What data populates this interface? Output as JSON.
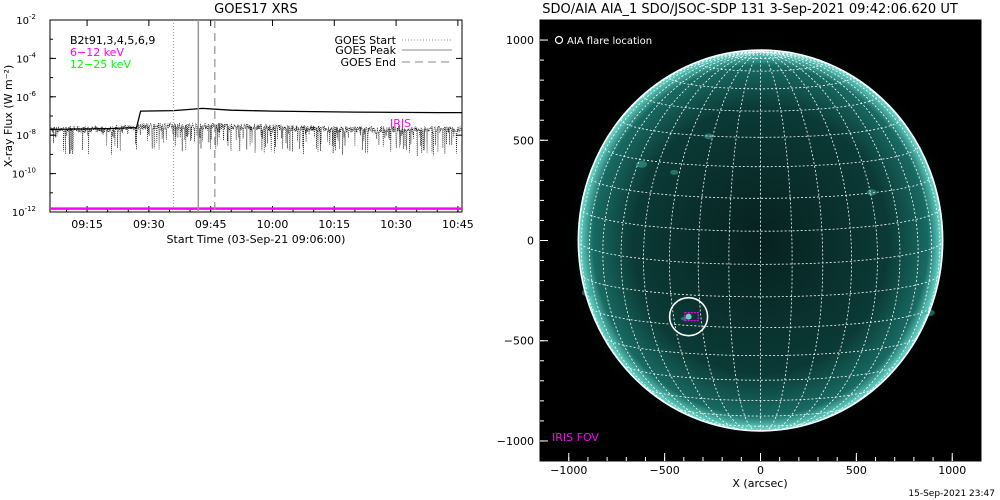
{
  "stamp": "15-Sep-2021 23:47",
  "chart_data": [
    {
      "type": "line",
      "title": "GOES17 XRS",
      "xlabel": "Start Time (03-Sep-21 09:06:00)",
      "ylabel": "X-ray Flux (W m⁻²)",
      "y_scale": "log",
      "ylim": [
        1e-12,
        0.01
      ],
      "xlim": [
        "09:06",
        "10:46"
      ],
      "x_ticks": [
        "09:15",
        "09:30",
        "09:45",
        "10:00",
        "10:15",
        "10:30",
        "10:45"
      ],
      "y_ticks": [
        "10",
        "10",
        "10",
        "10",
        "10",
        "10"
      ],
      "y_tick_exps": [
        "-12",
        "-10",
        "-8",
        "-6",
        "-4",
        "-2"
      ],
      "y_tick_values": [
        1e-12,
        1e-10,
        1e-08,
        1e-06,
        0.0001,
        0.01
      ],
      "channels_label": "B2t91,3,4,5,6,9",
      "band_labels": [
        {
          "text": "6−12 keV",
          "color": "#ff00ff"
        },
        {
          "text": "12−25 keV",
          "color": "#00ff00"
        }
      ],
      "legend": [
        {
          "label": "GOES Start",
          "style": "dotted"
        },
        {
          "label": "GOES Peak",
          "style": "solid"
        },
        {
          "label": "GOES End",
          "style": "dashed"
        }
      ],
      "legend_position": "top-right",
      "iris_label": "IRIS",
      "event_times": {
        "start": "09:36",
        "peak": "09:42",
        "end": "09:46"
      },
      "series": [
        {
          "style": "solid",
          "color": "#000000",
          "x": [
            "09:06",
            "09:20",
            "09:27",
            "09:28",
            "09:36",
            "09:40",
            "09:43",
            "09:50",
            "10:00",
            "10:20",
            "10:40",
            "10:46"
          ],
          "values": [
            2e-08,
            2.2e-08,
            2.5e-08,
            1.8e-07,
            1.9e-07,
            2.2e-07,
            2.5e-07,
            2e-07,
            1.8e-07,
            1.6e-07,
            1.5e-07,
            1.5e-07
          ]
        },
        {
          "style": "dotted-noisy",
          "color": "#000000",
          "x": [
            "09:06",
            "09:20",
            "09:30",
            "09:45",
            "10:00",
            "10:15",
            "10:30",
            "10:46"
          ],
          "values": [
            2e-08,
            2e-08,
            3e-08,
            3e-08,
            2.5e-08,
            2e-08,
            2e-08,
            2e-08
          ]
        },
        {
          "style": "solid",
          "color": "#ff00ff",
          "x": [
            "09:06",
            "10:46"
          ],
          "values": [
            1.5e-12,
            1.5e-12
          ]
        }
      ]
    },
    {
      "type": "image",
      "title": "SDO/AIA AIA_1 SDO/JSOC-SDP 131  3-Sep-2021 09:42:06.620 UT",
      "xlabel": "X (arcsec)",
      "x_ticks": [
        "−1000",
        "−500",
        "0",
        "500",
        "1000"
      ],
      "y_ticks": [
        "1000",
        "500",
        "0",
        "−500",
        "−1000"
      ],
      "tick_values": [
        -1000,
        -500,
        0,
        500,
        1000
      ],
      "xlim": [
        -1150,
        1150
      ],
      "ylim": [
        -1100,
        1100
      ],
      "solar_radius": 950,
      "flare_location_label": "AIA flare location",
      "flare_location": [
        -375,
        -380
      ],
      "iris_fov_label": "IRIS FOV",
      "iris_fov": [
        -395,
        -400,
        -325,
        -360
      ]
    }
  ]
}
